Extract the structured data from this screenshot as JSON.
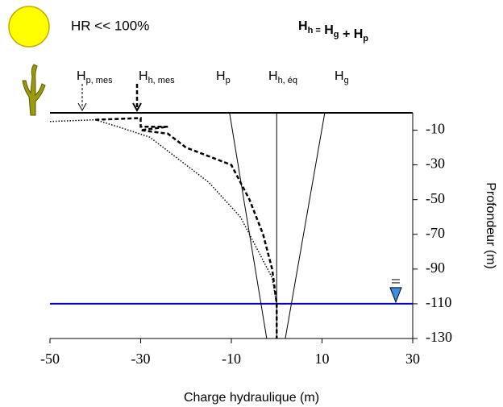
{
  "chart_data": {
    "type": "line",
    "status": "HR << 100%",
    "formula": [
      {
        "text": "H",
        "sub": "h ="
      },
      {
        "text": " H",
        "sub": "g"
      },
      {
        "text": " + H",
        "sub": "p"
      }
    ],
    "xlabel": "Charge hydraulique (m)",
    "ylabel": "Profondeur (m)",
    "xlim": [
      -50,
      30
    ],
    "xticks": [
      -50,
      -30,
      -10,
      10,
      30
    ],
    "ylim": [
      -130,
      0
    ],
    "yticks": [
      -10,
      -30,
      -50,
      -70,
      -90,
      -110,
      -130
    ],
    "water_level": -110,
    "series": [
      {
        "label": [
          "H",
          "p, mes"
        ],
        "color": "#000",
        "style": "dotted",
        "x": [
          -50,
          -40,
          -35,
          -28,
          -25,
          -15,
          -8,
          -4,
          -1,
          0
        ],
        "y": [
          -5,
          -4,
          -8,
          -14,
          -20,
          -40,
          -60,
          -80,
          -95,
          -110
        ]
      },
      {
        "label": [
          "H",
          "h, mes"
        ],
        "color": "#000",
        "style": "dashed",
        "x": [
          -40,
          -30,
          -30,
          -24,
          -30,
          -24,
          -20,
          -10,
          -6,
          -3,
          -1,
          0,
          0
        ],
        "y": [
          -4,
          -3,
          -8,
          -8,
          -10,
          -12,
          -20,
          -30,
          -50,
          -70,
          -90,
          -110,
          -130
        ]
      },
      {
        "label": [
          "H",
          "p"
        ],
        "color": "#000",
        "style": "solid",
        "x": [
          -10.4,
          -2.2
        ],
        "y": [
          0,
          -130
        ]
      },
      {
        "label": [
          "H",
          "h, éq"
        ],
        "color": "#000",
        "style": "solid",
        "x": [
          0,
          0
        ],
        "y": [
          0,
          -130
        ]
      },
      {
        "label": [
          "H",
          "g"
        ],
        "color": "#000",
        "style": "solid",
        "x": [
          10.6,
          1.9
        ],
        "y": [
          0,
          -130
        ]
      }
    ]
  }
}
